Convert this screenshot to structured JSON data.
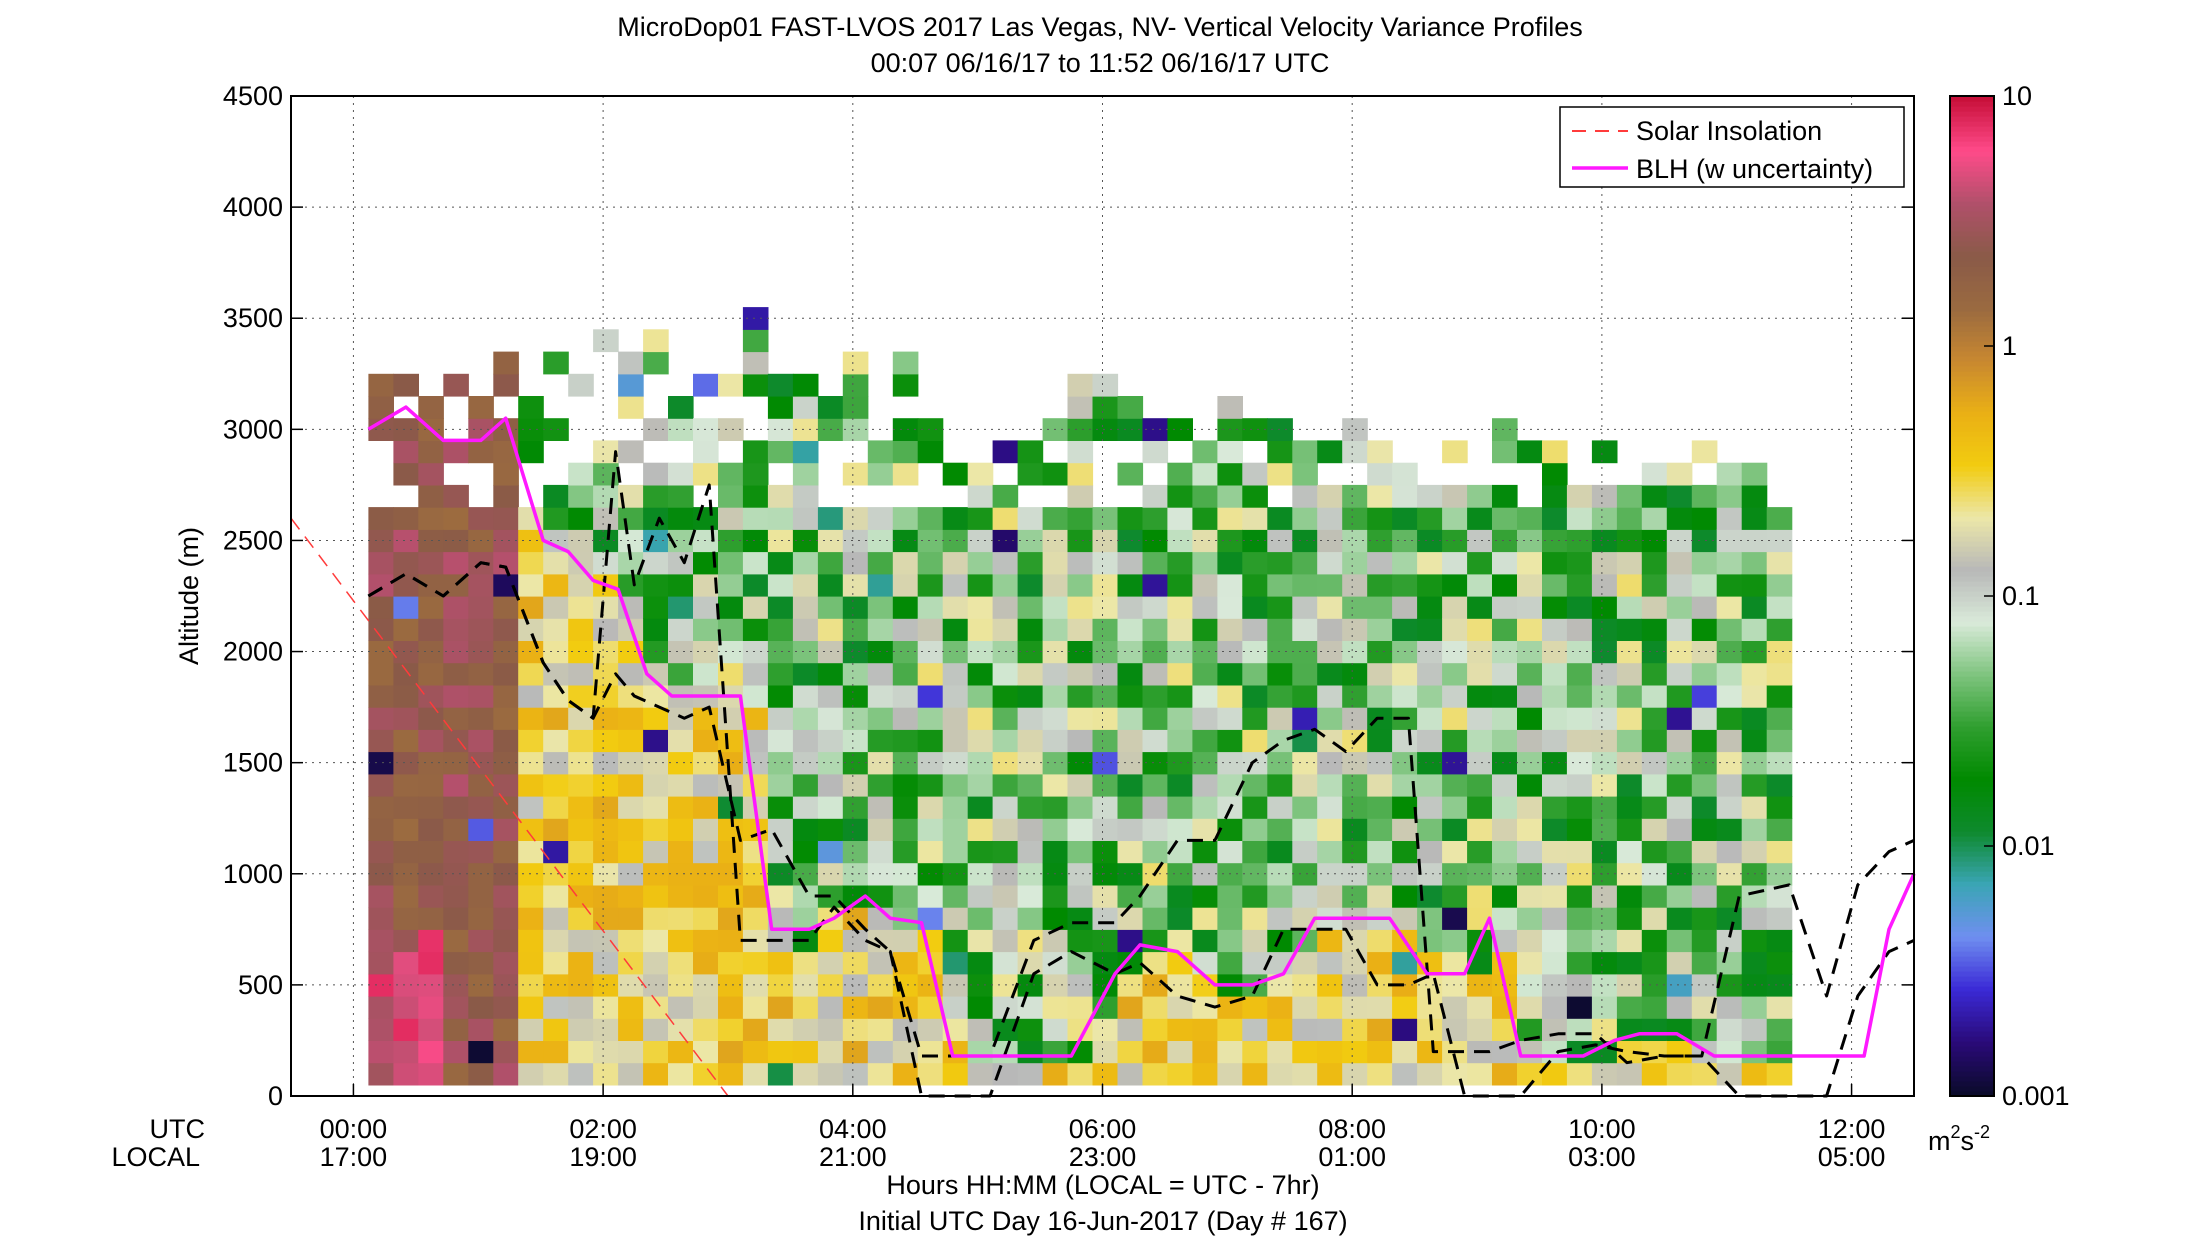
{
  "figure": {
    "title_line1": "MicroDop01 FAST-LVOS 2017 Las Vegas, NV- Vertical Velocity Variance Profiles",
    "title_line2": "00:07 06/16/17 to 11:52 06/16/17  UTC",
    "xlabel": "Hours HH:MM  (LOCAL = UTC - 7hr)",
    "xlabel2": "Initial UTC Day 16-Jun-2017 (Day # 167)",
    "row_label_utc": "UTC",
    "row_label_local": "LOCAL"
  },
  "chart_data": {
    "type": "heatmap",
    "title": "MicroDop01 FAST-LVOS 2017 Las Vegas, NV- Vertical Velocity Variance Profiles",
    "subtitle": "00:07 06/16/17 to 11:52 06/16/17  UTC",
    "xlabel": "Hours HH:MM  (LOCAL = UTC - 7hr)",
    "ylabel": "Altitude (m)",
    "xlim_hours_utc": [
      -0.5,
      12.5
    ],
    "ylim": [
      0,
      4500
    ],
    "grid": true,
    "x_ticks_hours": [
      0,
      2,
      4,
      6,
      8,
      10,
      12
    ],
    "x_ticks_utc": [
      "00:00",
      "02:00",
      "04:00",
      "06:00",
      "08:00",
      "10:00",
      "12:00"
    ],
    "x_ticks_local": [
      "17:00",
      "19:00",
      "21:00",
      "23:00",
      "01:00",
      "03:00",
      "05:00"
    ],
    "y_ticks": [
      0,
      500,
      1000,
      1500,
      2000,
      2500,
      3000,
      3500,
      4000,
      4500
    ],
    "colorbar": {
      "scale": "log",
      "range": [
        0.001,
        10
      ],
      "ticks": [
        0.001,
        0.01,
        0.1,
        1,
        10
      ],
      "tick_labels": [
        "0.001",
        "0.01",
        "0.1",
        "1",
        "10"
      ],
      "unit_label": "m",
      "unit_exp": "2",
      "unit_s": "s",
      "unit_exp2": "-2"
    },
    "legend": {
      "placement": "top-right",
      "entries": [
        {
          "label": "Solar Insolation",
          "color": "#ff3b3b",
          "style": "dashed"
        },
        {
          "label": "BLH (w uncertainty)",
          "color": "#ff19ff",
          "style": "solid"
        }
      ]
    },
    "heatmap_grid": {
      "time_start_h": 0.12,
      "time_step_h": 0.2,
      "columns": 57,
      "altitude_start_m": 100,
      "altitude_step_m": 100,
      "top_of_data_m": [
        3200,
        3200,
        3100,
        3200,
        3100,
        3300,
        3200,
        3400,
        3300,
        3500,
        3300,
        3500,
        3200,
        3200,
        3300,
        3500,
        3200,
        3200,
        3200,
        3300,
        3000,
        3400,
        3000,
        2900,
        3200,
        2900,
        3000,
        3100,
        3200,
        3200,
        3100,
        3100,
        3000,
        3000,
        3100,
        3100,
        3100,
        3100,
        2900,
        3000,
        3000,
        2900,
        3100,
        3000,
        3000,
        3000,
        2900,
        2900,
        2700,
        2900,
        2800,
        2800,
        2800,
        2900,
        2800,
        2800,
        2700
      ]
    },
    "blh": {
      "x_hours": [
        0.12,
        0.42,
        0.72,
        1.02,
        1.22,
        1.52,
        1.72,
        1.92,
        2.12,
        2.35,
        2.55,
        2.85,
        3.1,
        3.35,
        3.65,
        3.85,
        4.1,
        4.3,
        4.55,
        4.8,
        5.1,
        5.45,
        5.75,
        6.1,
        6.3,
        6.6,
        6.9,
        7.2,
        7.45,
        7.7,
        8.0,
        8.3,
        8.6,
        8.9,
        9.1,
        9.35,
        9.6,
        9.85,
        10.1,
        10.3,
        10.6,
        10.9,
        11.2,
        11.5,
        11.8,
        12.1,
        12.3,
        12.5
      ],
      "values": [
        3000,
        3100,
        2950,
        2950,
        3050,
        2500,
        2450,
        2320,
        2280,
        1900,
        1800,
        1800,
        1800,
        750,
        750,
        800,
        900,
        800,
        780,
        180,
        180,
        180,
        180,
        550,
        680,
        650,
        500,
        500,
        550,
        800,
        800,
        800,
        550,
        550,
        800,
        180,
        180,
        180,
        250,
        280,
        280,
        180,
        180,
        180,
        180,
        180,
        750,
        1000
      ]
    },
    "blh_upper": {
      "x_hours": [
        0.12,
        0.42,
        0.72,
        1.02,
        1.22,
        1.52,
        1.72,
        1.92,
        2.1,
        2.25,
        2.45,
        2.65,
        2.85,
        3.1,
        3.35,
        3.65,
        3.85,
        4.1,
        4.3,
        4.55,
        4.8,
        5.1,
        5.45,
        5.75,
        6.1,
        6.3,
        6.6,
        6.9,
        7.2,
        7.45,
        7.7,
        7.95,
        8.2,
        8.45,
        8.65,
        8.9,
        9.1,
        9.35,
        9.65,
        9.95,
        10.2,
        10.5,
        10.8,
        11.1,
        11.5,
        11.8,
        12.05,
        12.3,
        12.5
      ],
      "values": [
        2250,
        2350,
        2250,
        2400,
        2380,
        1950,
        1780,
        1700,
        1900,
        1800,
        1750,
        1700,
        1750,
        1150,
        1200,
        900,
        900,
        750,
        650,
        180,
        180,
        180,
        700,
        780,
        780,
        900,
        1150,
        1150,
        1500,
        1600,
        1650,
        1550,
        1700,
        1700,
        200,
        200,
        200,
        250,
        280,
        280,
        150,
        180,
        180,
        900,
        950,
        450,
        950,
        1100,
        1150
      ]
    },
    "blh_lower": {
      "x_hours": [
        0.12,
        0.42,
        0.72,
        1.02,
        1.22,
        1.52,
        1.72,
        1.92,
        2.1,
        2.25,
        2.45,
        2.65,
        2.85,
        3.1,
        3.35,
        3.65,
        3.85,
        4.1,
        4.3,
        4.55,
        4.8,
        5.1,
        5.45,
        5.75,
        6.1,
        6.3,
        6.6,
        6.9,
        7.2,
        7.45,
        7.7,
        7.95,
        8.2,
        8.45,
        8.65,
        8.9,
        9.1,
        9.35,
        9.65,
        9.95,
        10.2,
        10.5,
        10.8,
        11.1,
        11.5,
        11.8,
        12.05,
        12.3,
        12.5
      ],
      "values": [
        2250,
        2350,
        2250,
        2400,
        2380,
        1950,
        1780,
        1700,
        2900,
        2300,
        2600,
        2400,
        2750,
        700,
        700,
        700,
        850,
        700,
        650,
        0,
        0,
        0,
        550,
        650,
        550,
        600,
        450,
        400,
        450,
        750,
        750,
        750,
        500,
        500,
        550,
        0,
        0,
        0,
        200,
        230,
        200,
        180,
        180,
        0,
        0,
        0,
        450,
        650,
        700
      ]
    },
    "solar_insolation": {
      "x_hours": [
        -0.5,
        3.0
      ],
      "values": [
        2600,
        0
      ]
    }
  },
  "colors": {
    "colormap_stops": [
      "#0b0b2b",
      "#2a0a7a",
      "#3b2ad6",
      "#6f8ff0",
      "#3aa5b5",
      "#0e8a2e",
      "#008a00",
      "#2f9f2f",
      "#7ec47e",
      "#d9ead9",
      "#b8b8b8",
      "#ece7a8",
      "#f2cc10",
      "#eab015",
      "#c88830",
      "#9a6a40",
      "#8a5a48",
      "#b0506a",
      "#ff4b8a",
      "#c8103a"
    ],
    "blh": "#ff19ff",
    "blh_uncertainty": "#000000",
    "solar": "#ff3b3b"
  }
}
